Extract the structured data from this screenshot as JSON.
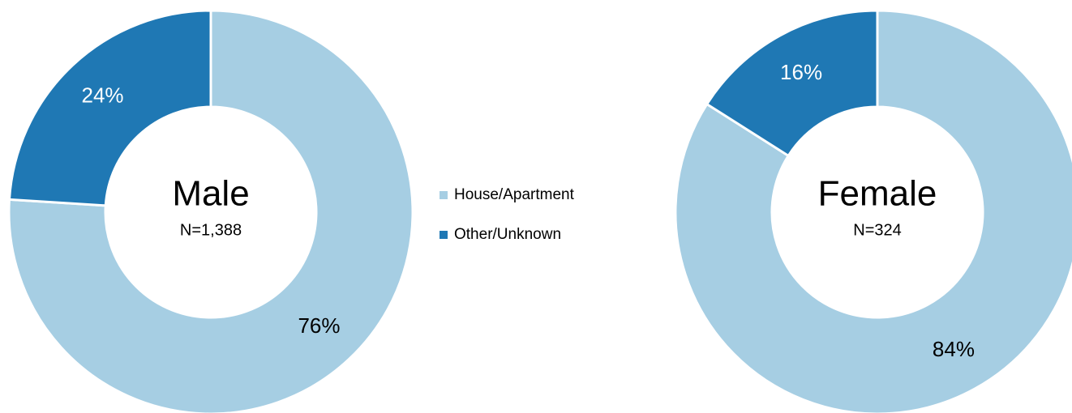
{
  "chart_data": [
    {
      "type": "pie",
      "donut": true,
      "title": "Male",
      "subtitle": "N=1,388",
      "categories": [
        "House/Apartment",
        "Other/Unknown"
      ],
      "values": [
        76,
        24
      ],
      "value_labels": [
        "76%",
        "24%"
      ],
      "colors": [
        "#a6cee3",
        "#1f78b4"
      ],
      "label_colors": [
        "#000000",
        "#ffffff"
      ]
    },
    {
      "type": "pie",
      "donut": true,
      "title": "Female",
      "subtitle": "N=324",
      "categories": [
        "House/Apartment",
        "Other/Unknown"
      ],
      "values": [
        84,
        16
      ],
      "value_labels": [
        "84%",
        "16%"
      ],
      "colors": [
        "#a6cee3",
        "#1f78b4"
      ],
      "label_colors": [
        "#000000",
        "#ffffff"
      ]
    }
  ]
}
